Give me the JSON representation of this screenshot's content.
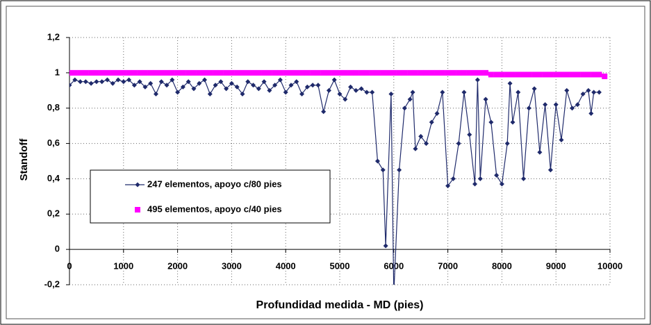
{
  "chart_data": {
    "type": "line",
    "xlabel": "Profundidad medida - MD (pies)",
    "ylabel": "Standoff",
    "xlim": [
      0,
      10000
    ],
    "xticks": [
      0,
      1000,
      2000,
      3000,
      4000,
      5000,
      6000,
      7000,
      8000,
      9000,
      10000
    ],
    "ylim": [
      -0.2,
      1.2
    ],
    "yticks": [
      {
        "value": -0.2,
        "label": "-0,2"
      },
      0,
      {
        "value": 0.2,
        "label": "0,2"
      },
      {
        "value": 0.4,
        "label": "0,4"
      },
      {
        "value": 0.6,
        "label": "0,6"
      },
      {
        "value": 0.8,
        "label": "0,8"
      },
      1,
      {
        "value": 1.2,
        "label": "1,2"
      }
    ],
    "grid": true,
    "legend": "left",
    "series": [
      {
        "name": "247 elementos, apoyo c/80 pies",
        "color": "#1f2a6b",
        "marker": "diamond",
        "x": [
          0,
          100,
          200,
          300,
          400,
          500,
          600,
          700,
          800,
          900,
          1000,
          1100,
          1200,
          1300,
          1400,
          1500,
          1600,
          1700,
          1800,
          1900,
          2000,
          2100,
          2200,
          2300,
          2400,
          2500,
          2600,
          2700,
          2800,
          2900,
          3000,
          3100,
          3200,
          3300,
          3400,
          3500,
          3600,
          3700,
          3800,
          3900,
          4000,
          4100,
          4200,
          4300,
          4400,
          4500,
          4600,
          4700,
          4800,
          4900,
          5000,
          5100,
          5200,
          5300,
          5400,
          5500,
          5600,
          5700,
          5800,
          5850,
          5950,
          6000,
          6100,
          6200,
          6300,
          6350,
          6400,
          6500,
          6600,
          6700,
          6800,
          6900,
          7000,
          7100,
          7200,
          7300,
          7400,
          7500,
          7550,
          7600,
          7700,
          7800,
          7900,
          8000,
          8100,
          8150,
          8200,
          8300,
          8400,
          8500,
          8600,
          8700,
          8800,
          8900,
          9000,
          9100,
          9200,
          9300,
          9400,
          9500,
          9600,
          9650,
          9700,
          9800
        ],
        "values": [
          0.93,
          0.96,
          0.95,
          0.95,
          0.94,
          0.95,
          0.95,
          0.96,
          0.94,
          0.96,
          0.95,
          0.96,
          0.93,
          0.95,
          0.92,
          0.94,
          0.88,
          0.95,
          0.93,
          0.96,
          0.89,
          0.92,
          0.95,
          0.91,
          0.94,
          0.96,
          0.88,
          0.93,
          0.95,
          0.91,
          0.94,
          0.92,
          0.88,
          0.95,
          0.93,
          0.91,
          0.95,
          0.9,
          0.93,
          0.96,
          0.89,
          0.93,
          0.95,
          0.88,
          0.92,
          0.93,
          0.93,
          0.78,
          0.9,
          0.96,
          0.88,
          0.85,
          0.92,
          0.9,
          0.91,
          0.89,
          0.89,
          0.5,
          0.45,
          0.02,
          0.88,
          -0.25,
          0.45,
          0.8,
          0.85,
          0.89,
          0.57,
          0.64,
          0.6,
          0.72,
          0.77,
          0.89,
          0.36,
          0.4,
          0.6,
          0.89,
          0.65,
          0.37,
          0.96,
          0.4,
          0.85,
          0.72,
          0.42,
          0.37,
          0.6,
          0.94,
          0.72,
          0.89,
          0.4,
          0.8,
          0.91,
          0.55,
          0.82,
          0.45,
          0.82,
          0.62,
          0.9,
          0.8,
          0.82,
          0.88,
          0.9,
          0.77,
          0.89,
          0.89
        ]
      },
      {
        "name": "495 elementos, apoyo c/40 pies",
        "color": "#ff00ff",
        "marker": "square",
        "x": [
          0,
          100,
          200,
          300,
          400,
          500,
          600,
          700,
          800,
          900,
          1000,
          1100,
          1200,
          1300,
          1400,
          1500,
          1600,
          1700,
          1800,
          1900,
          2000,
          2100,
          2200,
          2300,
          2400,
          2500,
          2600,
          2700,
          2800,
          2900,
          3000,
          3100,
          3200,
          3300,
          3400,
          3500,
          3600,
          3700,
          3800,
          3900,
          4000,
          4100,
          4200,
          4300,
          4400,
          4500,
          4600,
          4700,
          4800,
          4900,
          5000,
          5100,
          5200,
          5300,
          5400,
          5500,
          5600,
          5700,
          5800,
          5900,
          6000,
          6100,
          6200,
          6300,
          6400,
          6500,
          6600,
          6700,
          6800,
          6900,
          7000,
          7100,
          7200,
          7300,
          7400,
          7500,
          7600,
          7700,
          7800,
          7900,
          8000,
          8100,
          8200,
          8300,
          8400,
          8500,
          8600,
          8700,
          8800,
          8900,
          9000,
          9100,
          9200,
          9300,
          9400,
          9500,
          9600,
          9700,
          9800,
          9900
        ],
        "values": [
          1,
          1,
          1,
          1,
          1,
          1,
          1,
          1,
          1,
          1,
          1,
          1,
          1,
          1,
          1,
          1,
          1,
          1,
          1,
          1,
          1,
          1,
          1,
          1,
          1,
          1,
          1,
          1,
          1,
          1,
          1,
          1,
          1,
          1,
          1,
          1,
          1,
          1,
          1,
          1,
          1,
          1,
          1,
          1,
          1,
          1,
          1,
          1,
          1,
          1,
          1,
          1,
          1,
          1,
          1,
          1,
          1,
          1,
          1,
          1,
          1,
          1,
          1,
          1,
          1,
          1,
          1,
          1,
          1,
          1,
          1,
          1,
          1,
          1,
          1,
          1,
          1,
          1,
          0.99,
          0.99,
          0.99,
          0.99,
          0.99,
          0.99,
          0.99,
          0.99,
          0.99,
          0.99,
          0.99,
          0.99,
          0.99,
          0.99,
          0.99,
          0.99,
          0.99,
          0.99,
          0.99,
          0.99,
          0.99,
          0.98
        ]
      }
    ]
  }
}
